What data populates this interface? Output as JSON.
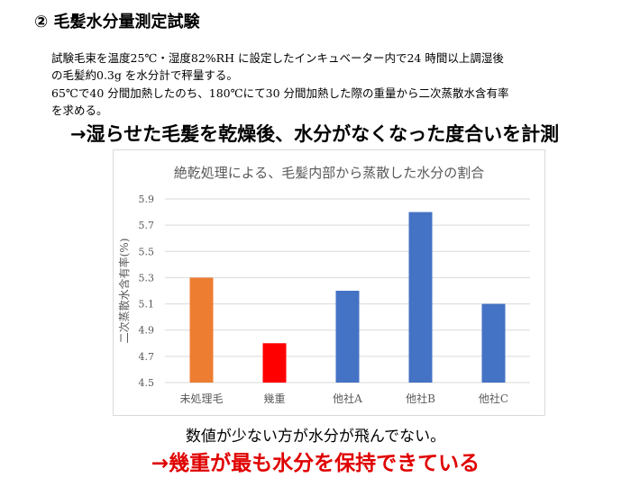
{
  "heading": "② 毛髪水分量測定試験",
  "body_lines": [
    "試験毛束を温度25℃・湿度82%RH に設定したインキュベーター内で24 時間以上調湿後",
    "の毛髪約0.3g を水分計で秤量する。",
    "65℃で40 分間加熱したのち、180℃にて30 分間加熱した際の重量から二次蒸散水含有率",
    "を求める。"
  ],
  "arrow_text": "→湿らせた毛髪を乾燥後、水分がなくなった度合いを計測",
  "note": "数値が少ない方が水分が飛んでない。",
  "conclusion": "→幾重が最も水分を保持できている",
  "chart_data": {
    "type": "bar",
    "title": "絶乾処理による、毛髪内部から蒸散した水分の割合",
    "xlabel": "",
    "ylabel": "二次蒸散水含有率(%)",
    "categories": [
      "未処理毛",
      "幾重",
      "他社A",
      "他社B",
      "他社C"
    ],
    "values": [
      5.3,
      4.8,
      5.2,
      5.8,
      5.1
    ],
    "colors": [
      "#ed7d31",
      "#ff0000",
      "#4472c4",
      "#4472c4",
      "#4472c4"
    ],
    "ylim": [
      4.5,
      5.9
    ],
    "yticks": [
      "4.5",
      "4.7",
      "4.9",
      "5.1",
      "5.3",
      "5.5",
      "5.7",
      "5.9"
    ],
    "grid": true
  }
}
